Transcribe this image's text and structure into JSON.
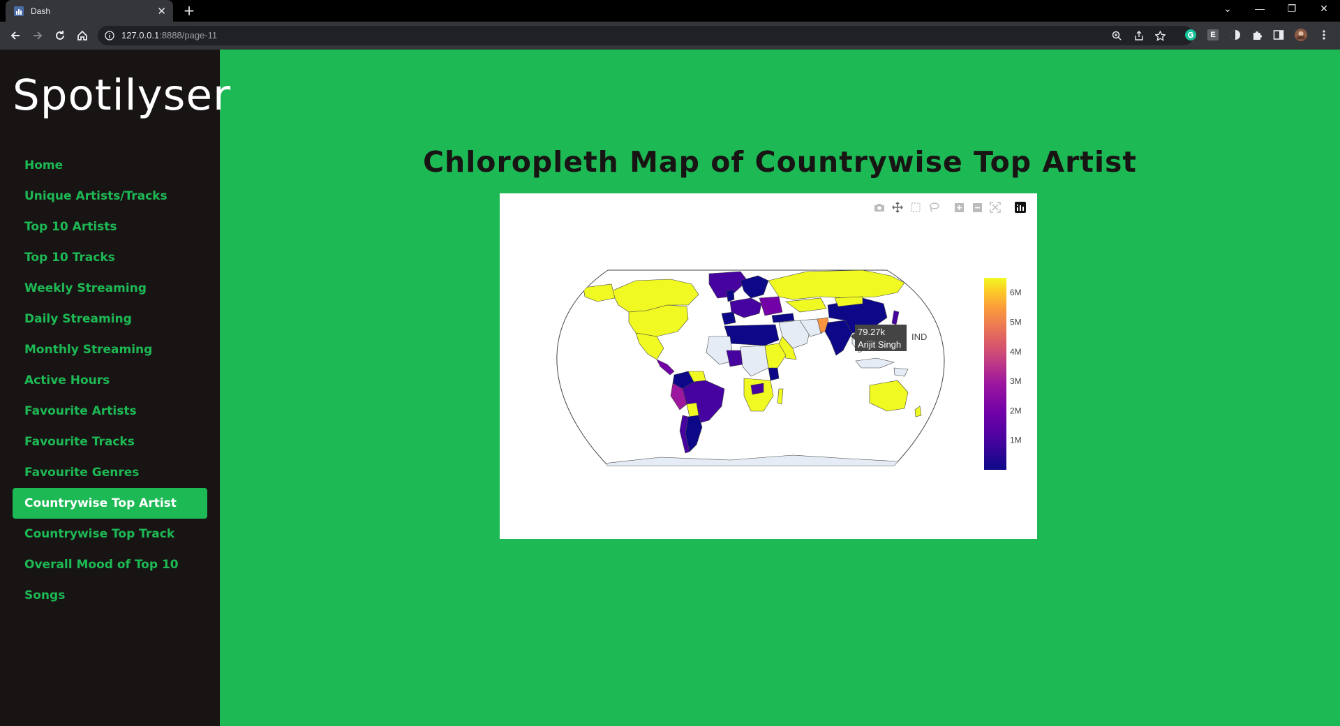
{
  "browser": {
    "tab_title": "Dash",
    "url_host": "127.0.0.1",
    "url_path": ":8888/page-11",
    "extension_letter": "E"
  },
  "sidebar": {
    "brand": "Spotilyser",
    "items": [
      {
        "label": "Home",
        "active": false
      },
      {
        "label": "Unique Artists/Tracks",
        "active": false
      },
      {
        "label": "Top 10 Artists",
        "active": false
      },
      {
        "label": "Top 10 Tracks",
        "active": false
      },
      {
        "label": "Weekly Streaming",
        "active": false
      },
      {
        "label": "Daily Streaming",
        "active": false
      },
      {
        "label": "Monthly Streaming",
        "active": false
      },
      {
        "label": "Active Hours",
        "active": false
      },
      {
        "label": "Favourite Artists",
        "active": false
      },
      {
        "label": "Favourite Tracks",
        "active": false
      },
      {
        "label": "Favourite Genres",
        "active": false
      },
      {
        "label": "Countrywise Top Artist",
        "active": true
      },
      {
        "label": "Countrywise Top Track",
        "active": false
      },
      {
        "label": "Overall Mood of Top 10 Songs",
        "active": false
      }
    ]
  },
  "main": {
    "title": "Chloropleth Map of Countrywise Top Artist"
  },
  "modebar": [
    "camera-icon",
    "pan-icon",
    "box-select-icon",
    "lasso-icon",
    "zoom-in-icon",
    "zoom-out-icon",
    "reset-icon",
    "plotly-logo-icon"
  ],
  "chart_data": {
    "type": "choropleth",
    "colorscale": "Plasma",
    "colorbar": {
      "ticks": [
        "1M",
        "2M",
        "3M",
        "4M",
        "5M",
        "6M"
      ],
      "range": [
        0,
        6500000
      ]
    },
    "hover": {
      "value": "79.27k",
      "artist": "Arijit Singh",
      "location": "IND"
    },
    "colors": {
      "high": "#f0f921",
      "mid": "#cc4778",
      "low": "#0d0887",
      "no_data": "#e5ecf6"
    }
  }
}
